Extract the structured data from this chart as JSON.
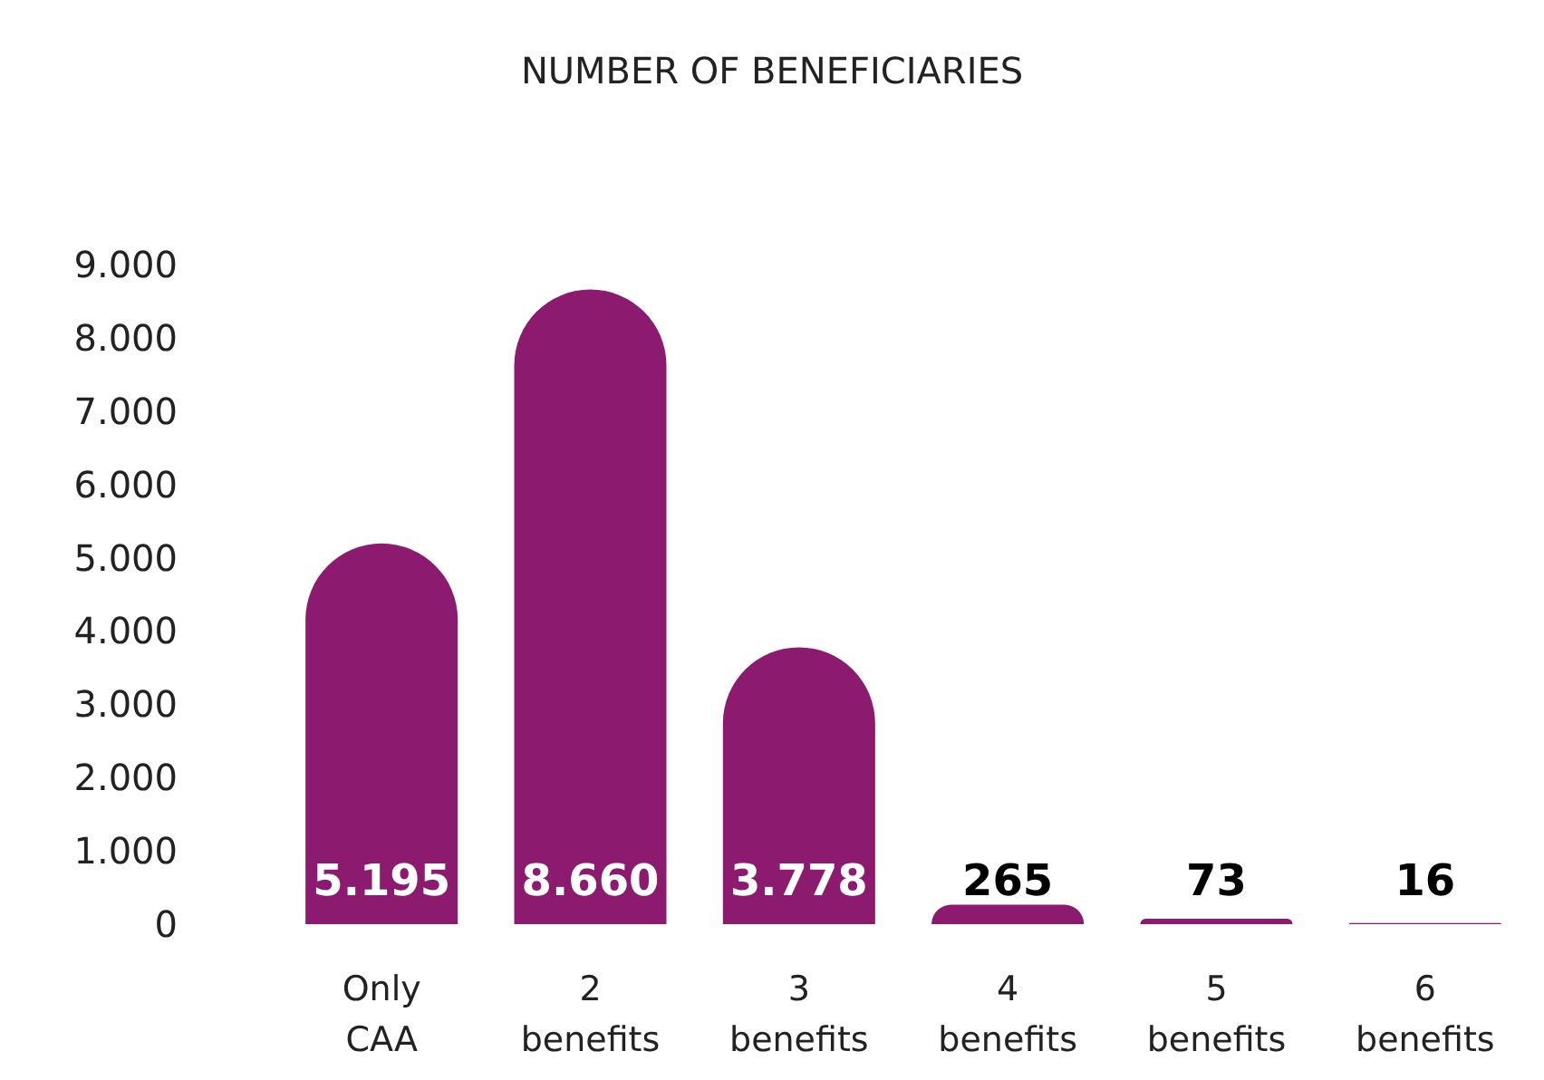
{
  "chart_data": {
    "type": "bar",
    "title": "NUMBER OF BENEFICIARIES",
    "categories": [
      "Only\nCAA",
      "2\nbenefits",
      "3\nbenefits",
      "4\nbenefits",
      "5\nbenefits",
      "6\nbenefits"
    ],
    "values": [
      5195,
      8660,
      3778,
      265,
      73,
      16
    ],
    "value_labels": [
      "5.195",
      "8.660",
      "3.778",
      "265",
      "73",
      "16"
    ],
    "color": "#8c1a6f",
    "ylim": [
      0,
      9000
    ],
    "yticks": [
      0,
      {
        "value": 1000,
        "label": "1.000"
      },
      {
        "value": 2000,
        "label": "2.000"
      },
      {
        "value": 3000,
        "label": "3.000"
      },
      {
        "value": 4000,
        "label": "4.000"
      },
      {
        "value": 5000,
        "label": "5.000"
      },
      {
        "value": 6000,
        "label": "6.000"
      },
      {
        "value": 7000,
        "label": "7.000"
      },
      {
        "value": 8000,
        "label": "8.000"
      },
      {
        "value": 9000,
        "label": "9.000"
      }
    ],
    "grid": false
  }
}
